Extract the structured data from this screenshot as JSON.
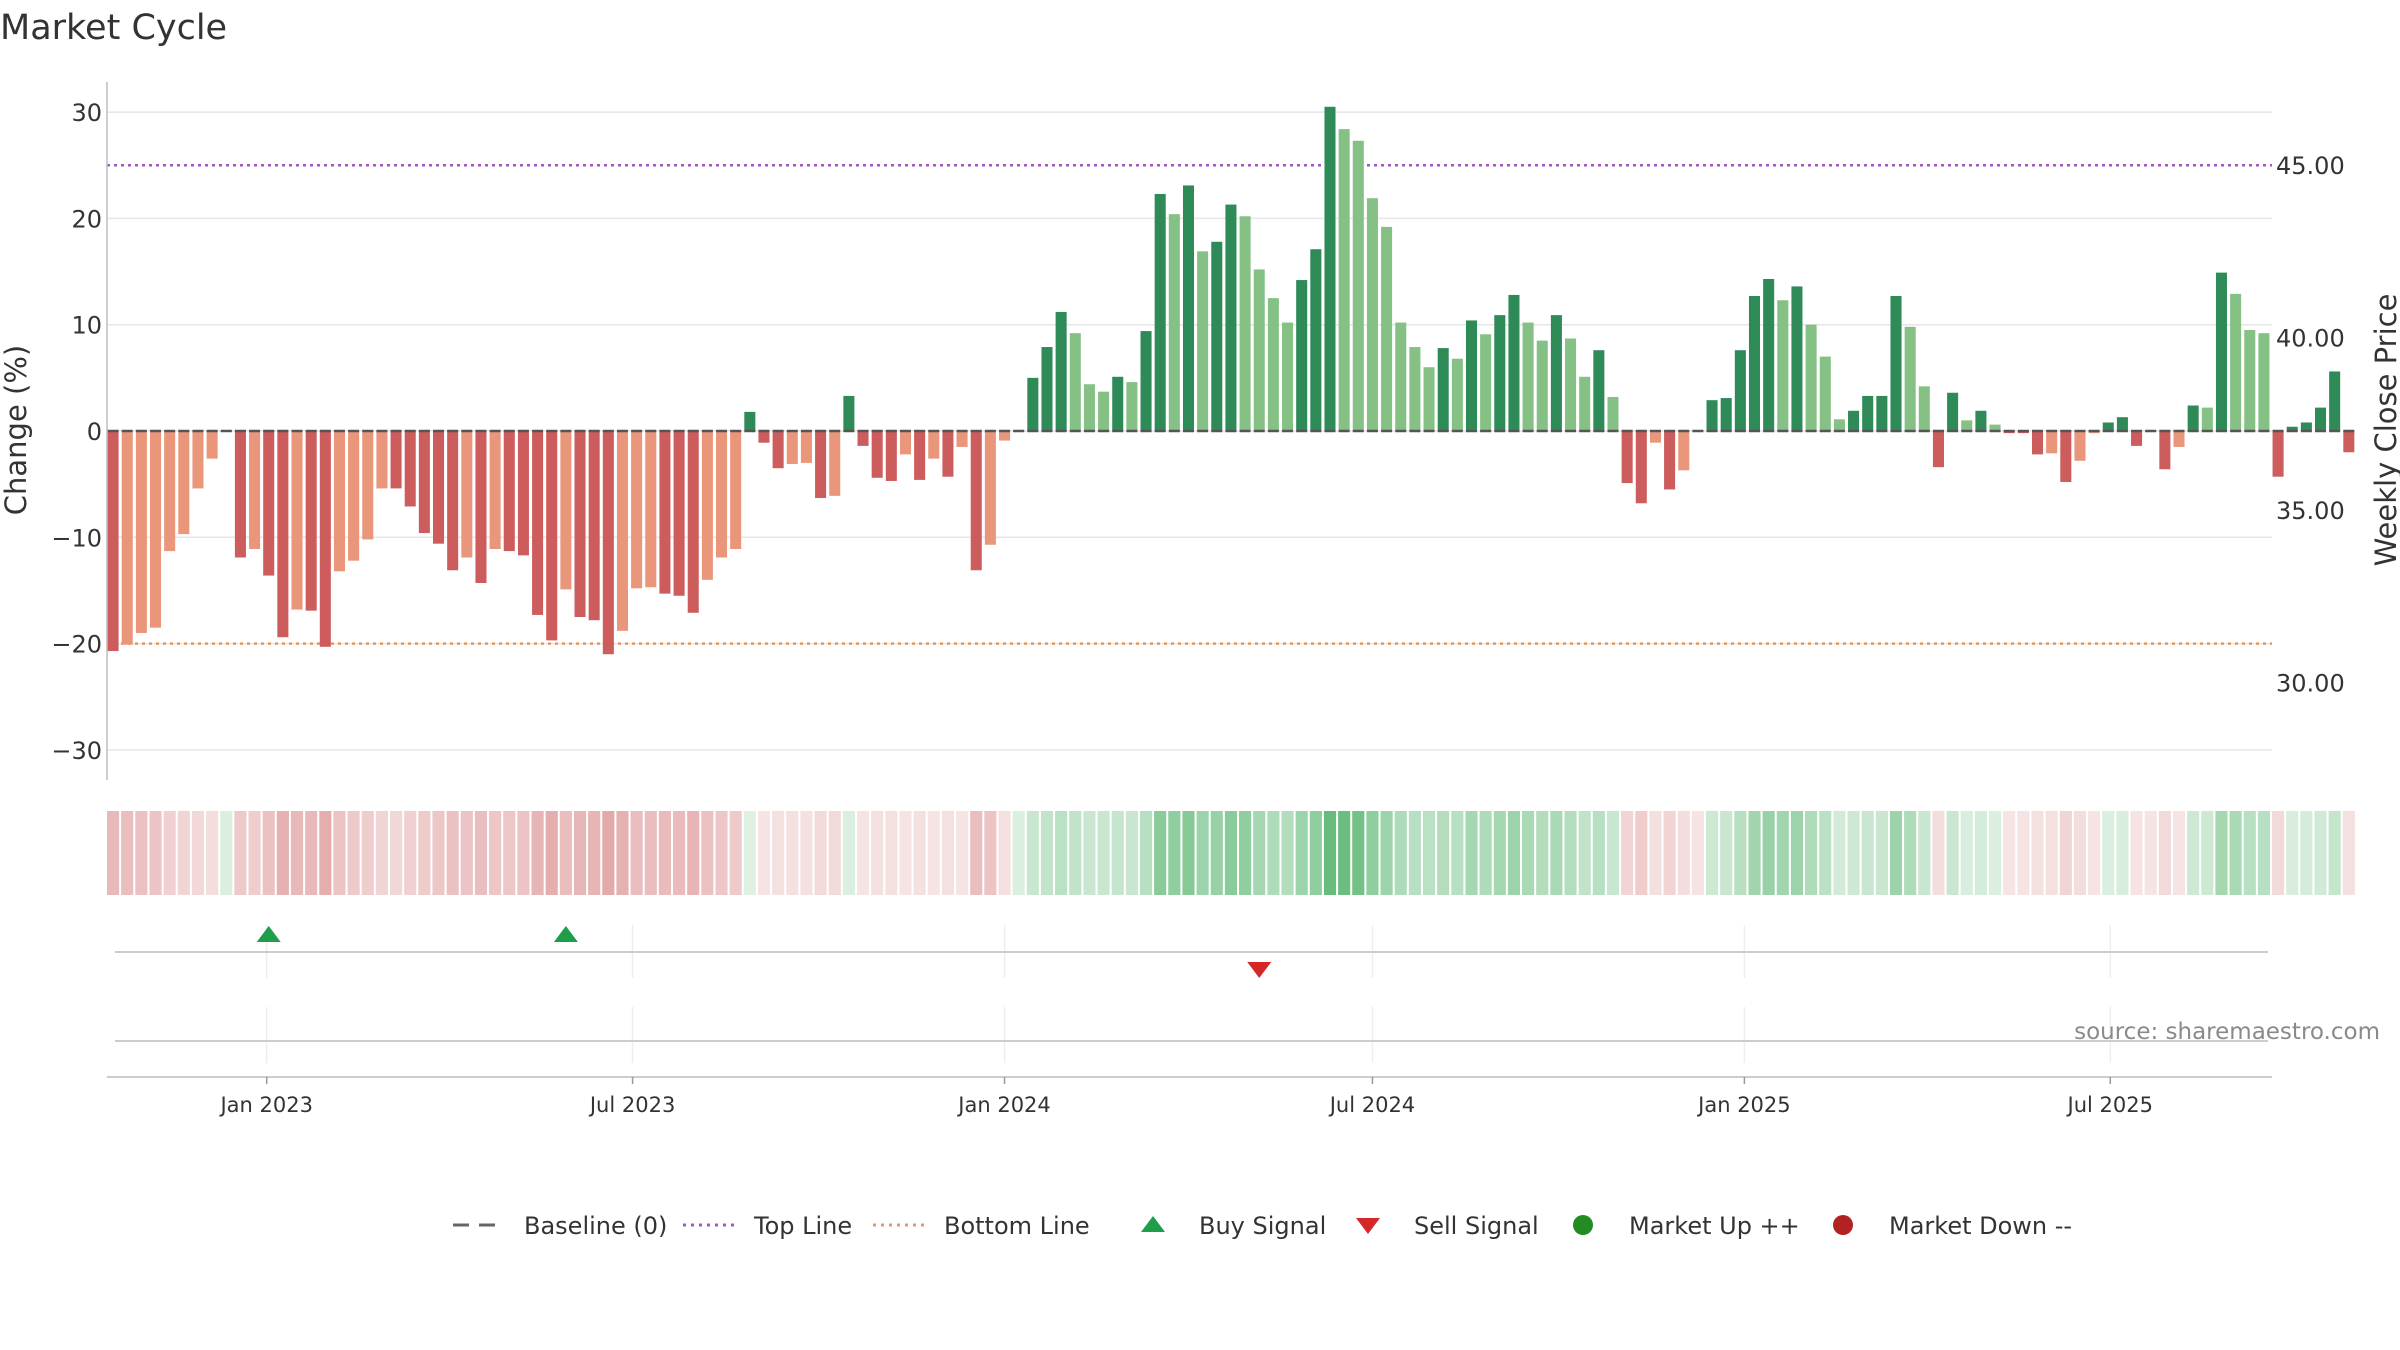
{
  "chart_data": {
    "type": "bar",
    "title": "Market Cycle",
    "ylabel": "Change (%)",
    "ylabel_right": "Weekly Close Price",
    "source": "source: sharemaestro.com",
    "ylim": [
      -33,
      33
    ],
    "yticks": [
      30,
      20,
      10,
      0,
      -10,
      -20,
      -30
    ],
    "ytick_labels": [
      "30",
      "20",
      "10",
      "0",
      "−10",
      "−20",
      "−30"
    ],
    "ylim_right": [
      27.7,
      47.6
    ],
    "yticks_right": [
      45,
      40,
      35,
      30
    ],
    "ytick_labels_right": [
      "45.00",
      "40.00",
      "35.00",
      "30.00"
    ],
    "top_line": 25,
    "bottom_line": -20,
    "baseline": 0,
    "x_start_date": "2022-10-17",
    "x_end_date": "2025-09-15",
    "x_axis_min": "2022-10-14",
    "x_axis_max": "2025-09-19",
    "xtick_dates": [
      "2023-01-01",
      "2023-07-01",
      "2024-01-01",
      "2024-07-01",
      "2025-01-01",
      "2025-07-01"
    ],
    "xtick_labels": [
      "Jan 2023",
      "Jul 2023",
      "Jan 2024",
      "Jul 2024",
      "Jan 2025",
      "Jul 2025"
    ],
    "values": [
      -20.7,
      -20.1,
      -19,
      -18.5,
      -11.3,
      -9.7,
      -5.4,
      -2.6,
      0,
      -11.9,
      -11.1,
      -13.6,
      -19.4,
      -16.8,
      -16.9,
      -20.3,
      -13.2,
      -12.2,
      -10.2,
      -5.4,
      -5.4,
      -7.1,
      -9.6,
      -10.6,
      -13.1,
      -11.9,
      -14.3,
      -11.1,
      -11.3,
      -11.7,
      -17.3,
      -19.7,
      -14.9,
      -17.5,
      -17.8,
      -21,
      -18.8,
      -14.8,
      -14.7,
      -15.3,
      -15.5,
      -17.1,
      -14,
      -11.9,
      -11.1,
      1.8,
      -1.1,
      -3.5,
      -3.1,
      -3,
      -6.3,
      -6.1,
      3.3,
      -1.4,
      -4.4,
      -4.7,
      -2.2,
      -4.6,
      -2.6,
      -4.3,
      -1.5,
      -13.1,
      -10.7,
      -0.9,
      0,
      5,
      7.9,
      11.2,
      9.2,
      4.4,
      3.7,
      5.1,
      4.6,
      9.4,
      22.3,
      20.4,
      23.1,
      16.9,
      17.8,
      21.3,
      20.2,
      15.2,
      12.5,
      10.2,
      14.2,
      17.1,
      30.5,
      28.4,
      27.3,
      21.9,
      19.2,
      10.2,
      7.9,
      6,
      7.8,
      6.8,
      10.4,
      9.1,
      10.9,
      12.8,
      10.2,
      8.5,
      10.9,
      8.7,
      5.1,
      7.6,
      3.2,
      -4.9,
      -6.8,
      -1.1,
      -5.5,
      -3.7,
      -0.1,
      2.9,
      3.1,
      7.6,
      12.7,
      14.3,
      12.3,
      13.6,
      10,
      7,
      1.1,
      1.9,
      3.3,
      3.3,
      12.7,
      9.8,
      4.2,
      -3.4,
      3.6,
      1,
      1.9,
      0.6,
      -0.2,
      -0.2,
      -2.2,
      -2.1,
      -4.8,
      -2.8,
      -0.2,
      0.8,
      1.3,
      -1.4,
      -0.1,
      -3.6,
      -1.5,
      2.4,
      2.2,
      14.9,
      12.9,
      9.5,
      9.2,
      -4.3,
      0.4,
      0.8,
      2.2,
      5.6,
      -2
    ],
    "price_band_strength": [
      0.45,
      0.42,
      0.4,
      0.38,
      0.3,
      0.28,
      0.25,
      0.22,
      0.2,
      0.35,
      0.32,
      0.4,
      0.5,
      0.45,
      0.45,
      0.52,
      0.38,
      0.35,
      0.32,
      0.27,
      0.26,
      0.3,
      0.33,
      0.36,
      0.4,
      0.38,
      0.42,
      0.36,
      0.37,
      0.38,
      0.48,
      0.52,
      0.42,
      0.47,
      0.48,
      0.55,
      0.5,
      0.42,
      0.42,
      0.44,
      0.44,
      0.48,
      0.4,
      0.36,
      0.34,
      0.18,
      0.18,
      0.2,
      0.2,
      0.2,
      0.24,
      0.24,
      0.2,
      0.18,
      0.2,
      0.2,
      0.18,
      0.2,
      0.18,
      0.2,
      0.18,
      0.42,
      0.38,
      0.2,
      0.2,
      0.3,
      0.34,
      0.38,
      0.35,
      0.3,
      0.3,
      0.32,
      0.3,
      0.4,
      0.65,
      0.62,
      0.68,
      0.55,
      0.58,
      0.65,
      0.62,
      0.5,
      0.45,
      0.42,
      0.55,
      0.62,
      0.85,
      0.82,
      0.78,
      0.62,
      0.55,
      0.45,
      0.4,
      0.38,
      0.42,
      0.4,
      0.5,
      0.45,
      0.5,
      0.55,
      0.48,
      0.42,
      0.48,
      0.42,
      0.35,
      0.4,
      0.3,
      0.28,
      0.32,
      0.2,
      0.28,
      0.22,
      0.18,
      0.28,
      0.3,
      0.4,
      0.52,
      0.58,
      0.52,
      0.55,
      0.45,
      0.38,
      0.25,
      0.28,
      0.3,
      0.3,
      0.55,
      0.45,
      0.3,
      0.22,
      0.3,
      0.22,
      0.24,
      0.2,
      0.18,
      0.18,
      0.2,
      0.2,
      0.28,
      0.22,
      0.18,
      0.2,
      0.22,
      0.18,
      0.18,
      0.24,
      0.18,
      0.28,
      0.28,
      0.5,
      0.48,
      0.4,
      0.4,
      0.24,
      0.22,
      0.24,
      0.26,
      0.32,
      0.2
    ],
    "signals": [
      {
        "type": "buy",
        "date": "2023-01-02"
      },
      {
        "type": "buy",
        "date": "2023-05-29"
      },
      {
        "type": "sell",
        "date": "2024-05-06"
      }
    ],
    "legend": [
      {
        "label": "Baseline (0)",
        "symbol": "dash",
        "color": "#666666"
      },
      {
        "label": "Top Line",
        "symbol": "dotted",
        "color": "#9b59d0"
      },
      {
        "label": "Bottom Line",
        "symbol": "dotted",
        "color": "#e39a62"
      },
      {
        "label": "Buy Signal",
        "symbol": "triangle-up",
        "color": "#1e9e4a"
      },
      {
        "label": "Sell Signal",
        "symbol": "triangle-down",
        "color": "#d62728"
      },
      {
        "label": "Market Up ++",
        "symbol": "circle",
        "color": "#228b22"
      },
      {
        "label": "Market Down --",
        "symbol": "circle",
        "color": "#b22222"
      }
    ],
    "colors": {
      "up_strong": "#2e8b57",
      "up_weak": "#85c185",
      "down_strong": "#cd5c5c",
      "down_weak": "#e9967a",
      "top_line": "#9b59d0",
      "bottom_line": "#e39a62",
      "baseline": "#555555",
      "grid": "#e6e6e6"
    }
  }
}
